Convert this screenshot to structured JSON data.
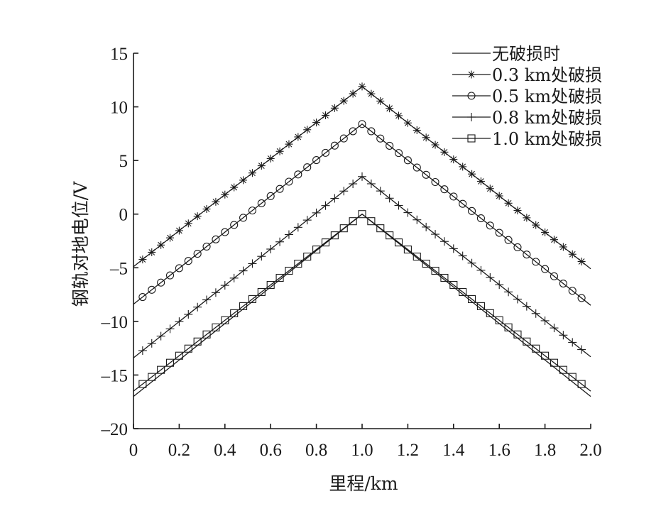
{
  "chart_data": {
    "type": "line",
    "title": "",
    "xlabel": "里程/km",
    "ylabel": "钢轨对地电位/V",
    "xlim": [
      0,
      2.0
    ],
    "ylim": [
      -20,
      15
    ],
    "x_ticks": [
      0,
      0.2,
      0.4,
      0.6,
      0.8,
      1.0,
      1.2,
      1.4,
      1.6,
      1.8,
      2.0
    ],
    "x_tick_labels": [
      "0",
      "0.2",
      "0.4",
      "0.6",
      "0.8",
      "1.0",
      "1.2",
      "1.4",
      "1.6",
      "1.8",
      "2.0"
    ],
    "y_ticks": [
      15,
      10,
      5,
      0,
      -5,
      -10,
      -15,
      -20
    ],
    "y_tick_labels": [
      "15",
      "10",
      "5",
      "0",
      "–5",
      "–10",
      "–15",
      "–20"
    ],
    "grid": false,
    "legend_position": "top-right",
    "series": [
      {
        "name": "无破损时",
        "marker": "none",
        "x": [
          0,
          1.0,
          2.0
        ],
        "y": [
          -17.0,
          0.0,
          -17.0
        ]
      },
      {
        "name": "0.3  km处破损",
        "marker": "star",
        "x": [
          0,
          1.0,
          2.0
        ],
        "y": [
          -4.9,
          11.9,
          -5.1
        ]
      },
      {
        "name": "0.5  km处破损",
        "marker": "circle",
        "x": [
          0,
          1.0,
          2.0
        ],
        "y": [
          -8.4,
          8.4,
          -8.5
        ]
      },
      {
        "name": "0.8  km处破损",
        "marker": "plus",
        "x": [
          0,
          1.0,
          2.0
        ],
        "y": [
          -13.4,
          3.5,
          -13.3
        ]
      },
      {
        "name": "1.0  km处破损",
        "marker": "square",
        "x": [
          0,
          1.0,
          2.0
        ],
        "y": [
          -16.5,
          0.0,
          -16.5
        ]
      }
    ]
  }
}
